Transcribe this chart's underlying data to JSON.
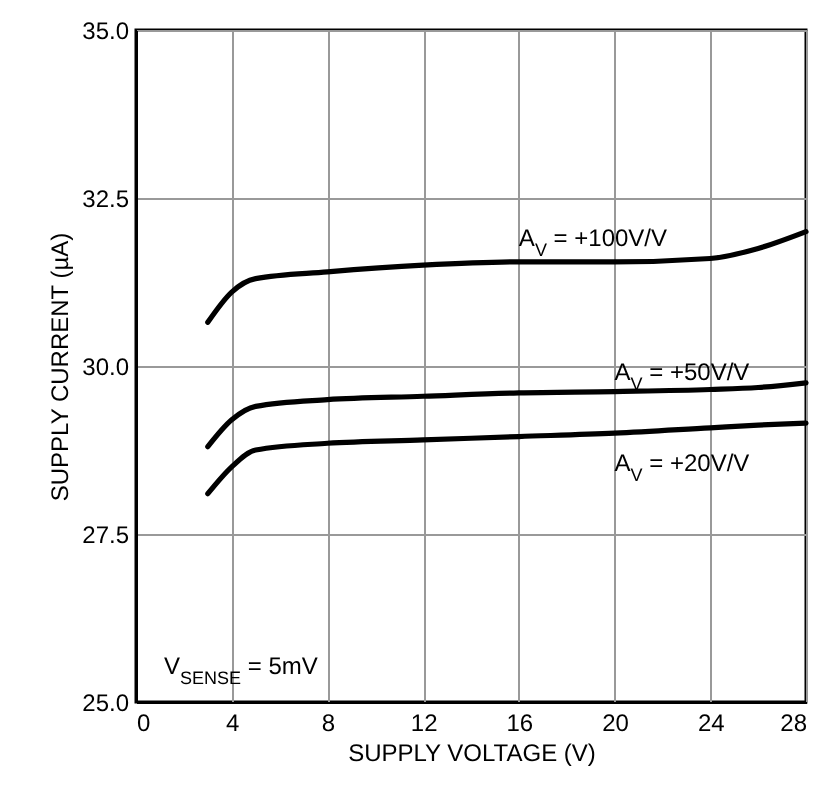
{
  "chart_data": {
    "type": "line",
    "xlabel": "SUPPLY VOLTAGE (V)",
    "ylabel": "SUPPLY CURRENT (µA)",
    "x": [
      3,
      4,
      5,
      8,
      12,
      16,
      20,
      24,
      26,
      28
    ],
    "series": [
      {
        "name": "A$_{V}$ = +100V/V",
        "color": "#000000",
        "values": [
          30.65,
          31.1,
          31.3,
          31.4,
          31.5,
          31.55,
          31.55,
          31.6,
          31.75,
          32.0
        ]
      },
      {
        "name": "A$_{V}$ = +50V/V",
        "color": "#000000",
        "values": [
          28.8,
          29.2,
          29.4,
          29.5,
          29.55,
          29.6,
          29.62,
          29.65,
          29.68,
          29.75
        ]
      },
      {
        "name": "A$_{V}$ = +20V/V",
        "color": "#000000",
        "values": [
          28.1,
          28.5,
          28.75,
          28.85,
          28.9,
          28.95,
          29.0,
          29.08,
          29.12,
          29.15
        ]
      }
    ],
    "xlim": [
      0,
      28
    ],
    "xticks": [
      0,
      4,
      8,
      12,
      16,
      20,
      24,
      28
    ],
    "ylim": [
      25,
      35
    ],
    "yticks": [
      {
        "value": 25,
        "label": "25.0"
      },
      27.5,
      {
        "value": 30,
        "label": "30.0"
      },
      32.5,
      {
        "value": 35,
        "label": "35.0"
      }
    ],
    "grid": true,
    "line_style": "solid",
    "marker": "none",
    "annotations": [
      "V$_{SENSE}$ = 5mV"
    ]
  }
}
